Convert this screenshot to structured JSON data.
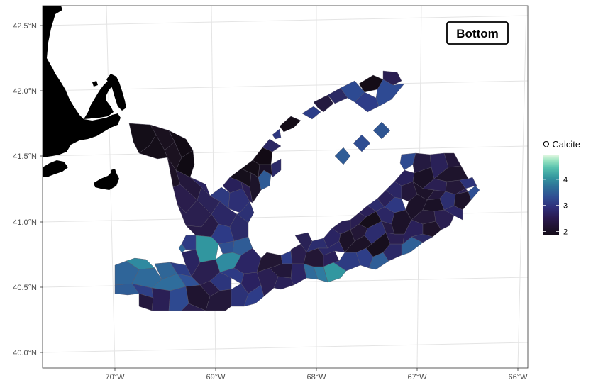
{
  "map": {
    "badge": "Bottom",
    "lat_labels": [
      "40.0°N",
      "40.5°N",
      "41.0°N",
      "41.5°N",
      "42.0°N",
      "42.5°N"
    ],
    "lon_labels": [
      "70°W",
      "69°W",
      "68°W",
      "67°W",
      "66°W"
    ],
    "land_color": "#9e9e9e",
    "grid_color": "#e3e3e3"
  },
  "legend": {
    "title": "Ω Calcite",
    "ticks": [
      "4",
      "3",
      "2"
    ],
    "tick_values": [
      4,
      3,
      2
    ],
    "min": 1.85,
    "max": 4.95,
    "colors": [
      "#f0fae9",
      "#a9e8c7",
      "#5fcfb6",
      "#3aaaa6",
      "#2f869f",
      "#30649a",
      "#343f8a",
      "#32276a",
      "#2a1a48",
      "#1a0f20"
    ]
  }
}
